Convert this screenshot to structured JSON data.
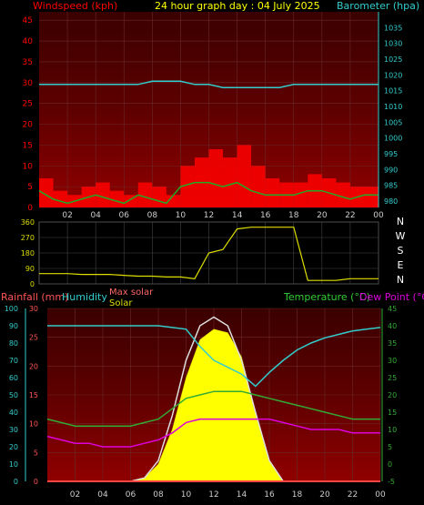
{
  "header": {
    "left_label": "Windspeed (kph)",
    "title": "24 hour graph day : 04 July 2025",
    "right_label": "Barometer (hpa)"
  },
  "colors": {
    "wind_label": "#ff0000",
    "title": "#ffff00",
    "barometer": "#33cccc",
    "wind_avg": "#22aa22",
    "gust": "#ff0000",
    "direction": "#dddd00",
    "humidity": "#33cccc",
    "temperature": "#33aa33",
    "dewpoint": "#dd00dd",
    "rain_label": "#ff5555",
    "maxsolar": "#dddddd",
    "solar": "#ffff00"
  },
  "x_ticks": [
    "02",
    "04",
    "06",
    "08",
    "10",
    "12",
    "14",
    "16",
    "18",
    "20",
    "22",
    "00"
  ],
  "compass": [
    "N",
    "W",
    "S",
    "E",
    "N"
  ],
  "labels": {
    "rainfall": "Rainfall (mm)",
    "humidity": "Humidity",
    "max_solar": "Max solar",
    "solar": "Solar",
    "temperature": "Temperature (°C)",
    "dew_point": "Dew Point (°C)"
  },
  "chart_data": [
    {
      "type": "line",
      "id": "wind",
      "x_hours": [
        0,
        1,
        2,
        3,
        4,
        5,
        6,
        7,
        8,
        9,
        10,
        11,
        12,
        13,
        14,
        15,
        16,
        17,
        18,
        19,
        20,
        21,
        22,
        23,
        24
      ],
      "series": [
        {
          "values": [
            4,
            2,
            1,
            2,
            3,
            2,
            1,
            3,
            2,
            1,
            5,
            6,
            6,
            5,
            6,
            4,
            3,
            3,
            3,
            4,
            4,
            3,
            2,
            3,
            3
          ]
        },
        {
          "values": [
            7,
            4,
            3,
            5,
            6,
            4,
            3,
            6,
            5,
            3,
            10,
            12,
            14,
            12,
            15,
            10,
            7,
            6,
            6,
            8,
            7,
            6,
            5,
            5,
            6
          ]
        }
      ],
      "y_left_ticks": [
        0,
        5,
        10,
        15,
        20,
        25,
        30,
        35,
        40,
        45
      ],
      "ylim_left": [
        0,
        47
      ],
      "barometer": [
        1017,
        1017,
        1017,
        1017,
        1017,
        1017,
        1017,
        1017,
        1018,
        1018,
        1018,
        1017,
        1017,
        1016,
        1016,
        1016,
        1016,
        1016,
        1017,
        1017,
        1017,
        1017,
        1017,
        1017,
        1017
      ],
      "y_right_ticks": [
        980,
        985,
        990,
        995,
        1000,
        1005,
        1010,
        1015,
        1020,
        1025,
        1030,
        1035
      ],
      "ylim_right": [
        978,
        1040
      ]
    },
    {
      "type": "line",
      "id": "direction",
      "x_hours": [
        0,
        1,
        2,
        3,
        4,
        5,
        6,
        7,
        8,
        9,
        10,
        11,
        12,
        13,
        14,
        15,
        16,
        17,
        18,
        19,
        20,
        21,
        22,
        23,
        24
      ],
      "values": [
        60,
        60,
        60,
        55,
        55,
        55,
        50,
        45,
        45,
        40,
        40,
        30,
        180,
        200,
        320,
        330,
        330,
        330,
        330,
        20,
        20,
        20,
        30,
        30,
        30
      ],
      "y_ticks": [
        0,
        90,
        180,
        270,
        360
      ],
      "ylim": [
        0,
        360
      ]
    },
    {
      "type": "line",
      "id": "climate",
      "x_hours": [
        0,
        1,
        2,
        3,
        4,
        5,
        6,
        7,
        8,
        9,
        10,
        11,
        12,
        13,
        14,
        15,
        16,
        17,
        18,
        19,
        20,
        21,
        22,
        23,
        24
      ],
      "humidity": [
        90,
        90,
        90,
        90,
        90,
        90,
        90,
        90,
        90,
        89,
        88,
        78,
        70,
        66,
        62,
        55,
        63,
        70,
        76,
        80,
        83,
        85,
        87,
        88,
        89
      ],
      "temperature": [
        13,
        12,
        11,
        11,
        11,
        11,
        11,
        12,
        13,
        16,
        19,
        20,
        21,
        21,
        21,
        20,
        19,
        18,
        17,
        16,
        15,
        14,
        13,
        13,
        13
      ],
      "dewpoint": [
        8,
        7,
        6,
        6,
        5,
        5,
        5,
        6,
        7,
        9,
        12,
        13,
        13,
        13,
        13,
        13,
        13,
        12,
        11,
        10,
        10,
        10,
        9,
        9,
        9
      ],
      "solar_pct": [
        0,
        0,
        0,
        0,
        0,
        0,
        0,
        2,
        10,
        30,
        60,
        82,
        88,
        86,
        72,
        40,
        12,
        0,
        0,
        0,
        0,
        0,
        0,
        0,
        0
      ],
      "maxsolar_pct": [
        0,
        0,
        0,
        0,
        0,
        0,
        0,
        2,
        12,
        38,
        70,
        90,
        95,
        90,
        70,
        40,
        12,
        0,
        0,
        0,
        0,
        0,
        0,
        0,
        0
      ],
      "y_humidity_ticks": [
        0,
        10,
        20,
        30,
        40,
        50,
        60,
        70,
        80,
        90,
        100
      ],
      "ylim_humidity": [
        0,
        100
      ],
      "y_rain_ticks": [
        0,
        5,
        10,
        15,
        20,
        25,
        30
      ],
      "ylim_rain": [
        0,
        30
      ],
      "y_temp_ticks": [
        -5,
        0,
        5,
        10,
        15,
        20,
        25,
        30,
        35,
        40,
        45
      ],
      "ylim_temp": [
        -5,
        45
      ]
    }
  ]
}
